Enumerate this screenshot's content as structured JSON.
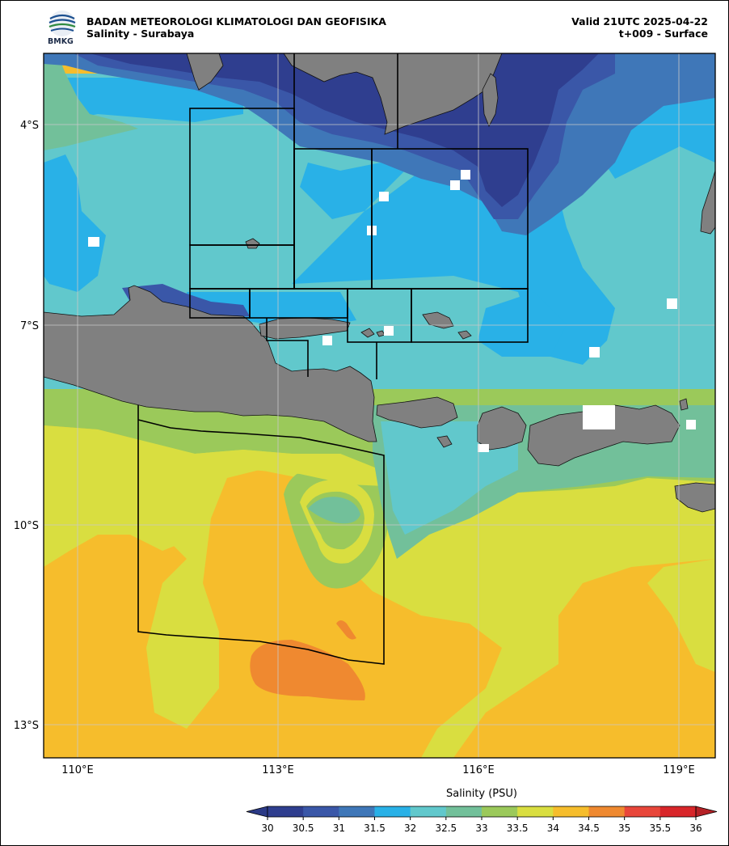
{
  "header": {
    "agency": "BADAN METEOROLOGI KLIMATOLOGI DAN GEOFISIKA",
    "product": "Salinity - Surabaya",
    "valid": "Valid 21UTC 2025-04-22",
    "lead": "t+009 - Surface"
  },
  "logo": {
    "text": "BMKG",
    "icon": "bmkg-logo"
  },
  "map": {
    "x_ticks": [
      "110°E",
      "113°E",
      "116°E",
      "119°E"
    ],
    "y_ticks": [
      "4°S",
      "7°S",
      "10°S",
      "13°S"
    ]
  },
  "colorbar": {
    "title": "Salinity (PSU)",
    "ticks": [
      "30",
      "30.5",
      "31",
      "31.5",
      "32",
      "32.5",
      "33",
      "33.5",
      "34",
      "34.5",
      "35",
      "35.5",
      "36"
    ],
    "colors": [
      "#2f3e8f",
      "#3a57a8",
      "#3f77b8",
      "#29b1e7",
      "#61c8cc",
      "#72c09a",
      "#9bc95a",
      "#d9de40",
      "#f6bd2c",
      "#ef8930",
      "#e8463a",
      "#d8262a"
    ],
    "under_color": "#2b3a86",
    "over_color": "#b52126"
  },
  "palette": {
    "s31": "#2f3e8f",
    "s315": "#3a57a8",
    "s32a": "#3f77b8",
    "s32": "#29b1e7",
    "s325": "#61c8cc",
    "s33": "#72c09a",
    "s335": "#9bc95a",
    "s34": "#d9de40",
    "s345": "#f6bd2c",
    "s35": "#ef8930",
    "land": "#808080"
  }
}
